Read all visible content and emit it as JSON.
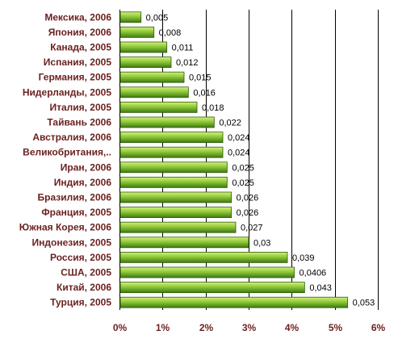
{
  "chart_data": {
    "type": "bar",
    "orientation": "horizontal",
    "categories": [
      "Мексика, 2006",
      "Япония, 2006",
      "Канада, 2005",
      "Испания, 2005",
      "Германия, 2005",
      "Нидерланды, 2005",
      "Италия, 2005",
      "Тайвань  2006",
      "Австралия, 2006",
      "Великобритания,..",
      "Иран, 2006",
      "Индия, 2006",
      "Бразилия, 2006",
      "Франция, 2005",
      "Южная Корея, 2006",
      "Индонезия, 2005",
      "Россия, 2005",
      "США, 2005",
      "Китай, 2006",
      "Турция, 2005"
    ],
    "values": [
      0.005,
      0.008,
      0.011,
      0.012,
      0.015,
      0.016,
      0.018,
      0.022,
      0.024,
      0.024,
      0.025,
      0.025,
      0.026,
      0.026,
      0.027,
      0.03,
      0.039,
      0.0406,
      0.043,
      0.053
    ],
    "value_labels": [
      "0,005",
      "0,008",
      "0,011",
      "0,012",
      "0,015",
      "0,016",
      "0,018",
      "0,022",
      "0,024",
      "0,024",
      "0,025",
      "0,025",
      "0,026",
      "0,026",
      "0,027",
      "0,03",
      "0,039",
      "0,0406",
      "0,043",
      "0,053"
    ],
    "x_ticks": [
      0,
      0.01,
      0.02,
      0.03,
      0.04,
      0.05,
      0.06
    ],
    "x_tick_labels": [
      "0%",
      "1%",
      "2%",
      "3%",
      "4%",
      "5%",
      "6%"
    ],
    "xlim": [
      0,
      0.06
    ],
    "title": "",
    "xlabel": "",
    "ylabel": "",
    "grid": "vertical",
    "legend": "none",
    "colors": {
      "bar_light": "#d4f27a",
      "bar_mid": "#8fc83a",
      "bar_dark": "#3d7a12",
      "bar_edge": "#2f5c0c",
      "grid": "#000000",
      "label": "#6b1f1f"
    }
  }
}
